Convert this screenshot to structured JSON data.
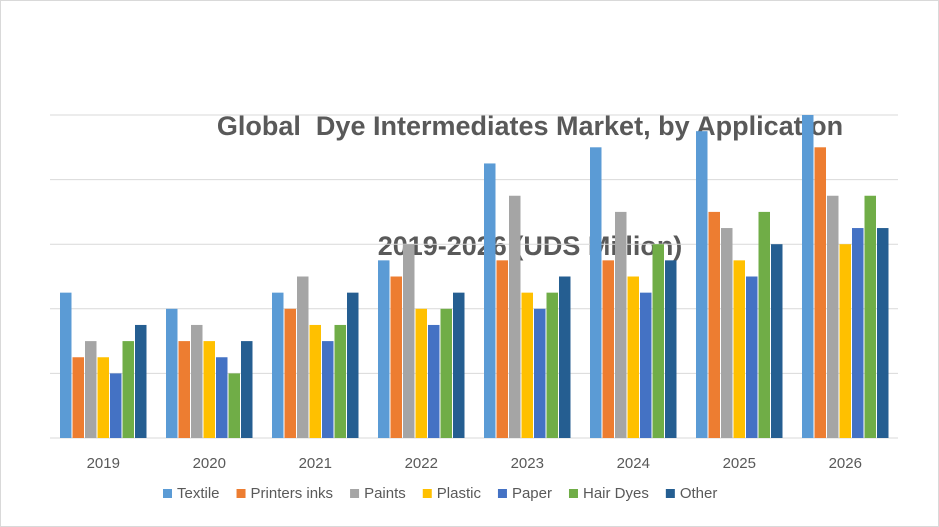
{
  "chart_data": {
    "type": "bar",
    "title": "Global  Dye Intermediates Market, by Application 2019-2026 (UDS Million)",
    "title_lines": [
      "Global  Dye Intermediates Market, by Application",
      "2019-2026 (UDS Million)"
    ],
    "xlabel": "",
    "ylabel": "",
    "y_tick_labels_shown": false,
    "grid": true,
    "legend_position": "bottom",
    "ylim": [
      0,
      10
    ],
    "categories": [
      "2019",
      "2020",
      "2021",
      "2022",
      "2023",
      "2024",
      "2025",
      "2026"
    ],
    "series": [
      {
        "name": "Textile",
        "color": "#5b9bd5",
        "values": [
          4.5,
          4.0,
          4.5,
          5.5,
          8.5,
          9.0,
          9.5,
          10.0
        ]
      },
      {
        "name": "Printers inks",
        "color": "#ed7d31",
        "values": [
          2.5,
          3.0,
          4.0,
          5.0,
          5.5,
          5.5,
          7.0,
          9.0
        ]
      },
      {
        "name": "Paints",
        "color": "#a5a5a5",
        "values": [
          3.0,
          3.5,
          5.0,
          6.0,
          7.5,
          7.0,
          6.5,
          7.5
        ]
      },
      {
        "name": "Plastic",
        "color": "#ffc000",
        "values": [
          2.5,
          3.0,
          3.5,
          4.0,
          4.5,
          5.0,
          5.5,
          6.0
        ]
      },
      {
        "name": "Paper",
        "color": "#4472c4",
        "values": [
          2.0,
          2.5,
          3.0,
          3.5,
          4.0,
          4.5,
          5.0,
          6.5
        ]
      },
      {
        "name": "Hair Dyes",
        "color": "#70ad47",
        "values": [
          3.0,
          2.0,
          3.5,
          4.0,
          4.5,
          6.0,
          7.0,
          7.5
        ]
      },
      {
        "name": "Other",
        "color": "#255e91",
        "values": [
          3.5,
          3.0,
          4.5,
          4.5,
          5.0,
          5.5,
          6.0,
          6.5
        ]
      }
    ]
  }
}
